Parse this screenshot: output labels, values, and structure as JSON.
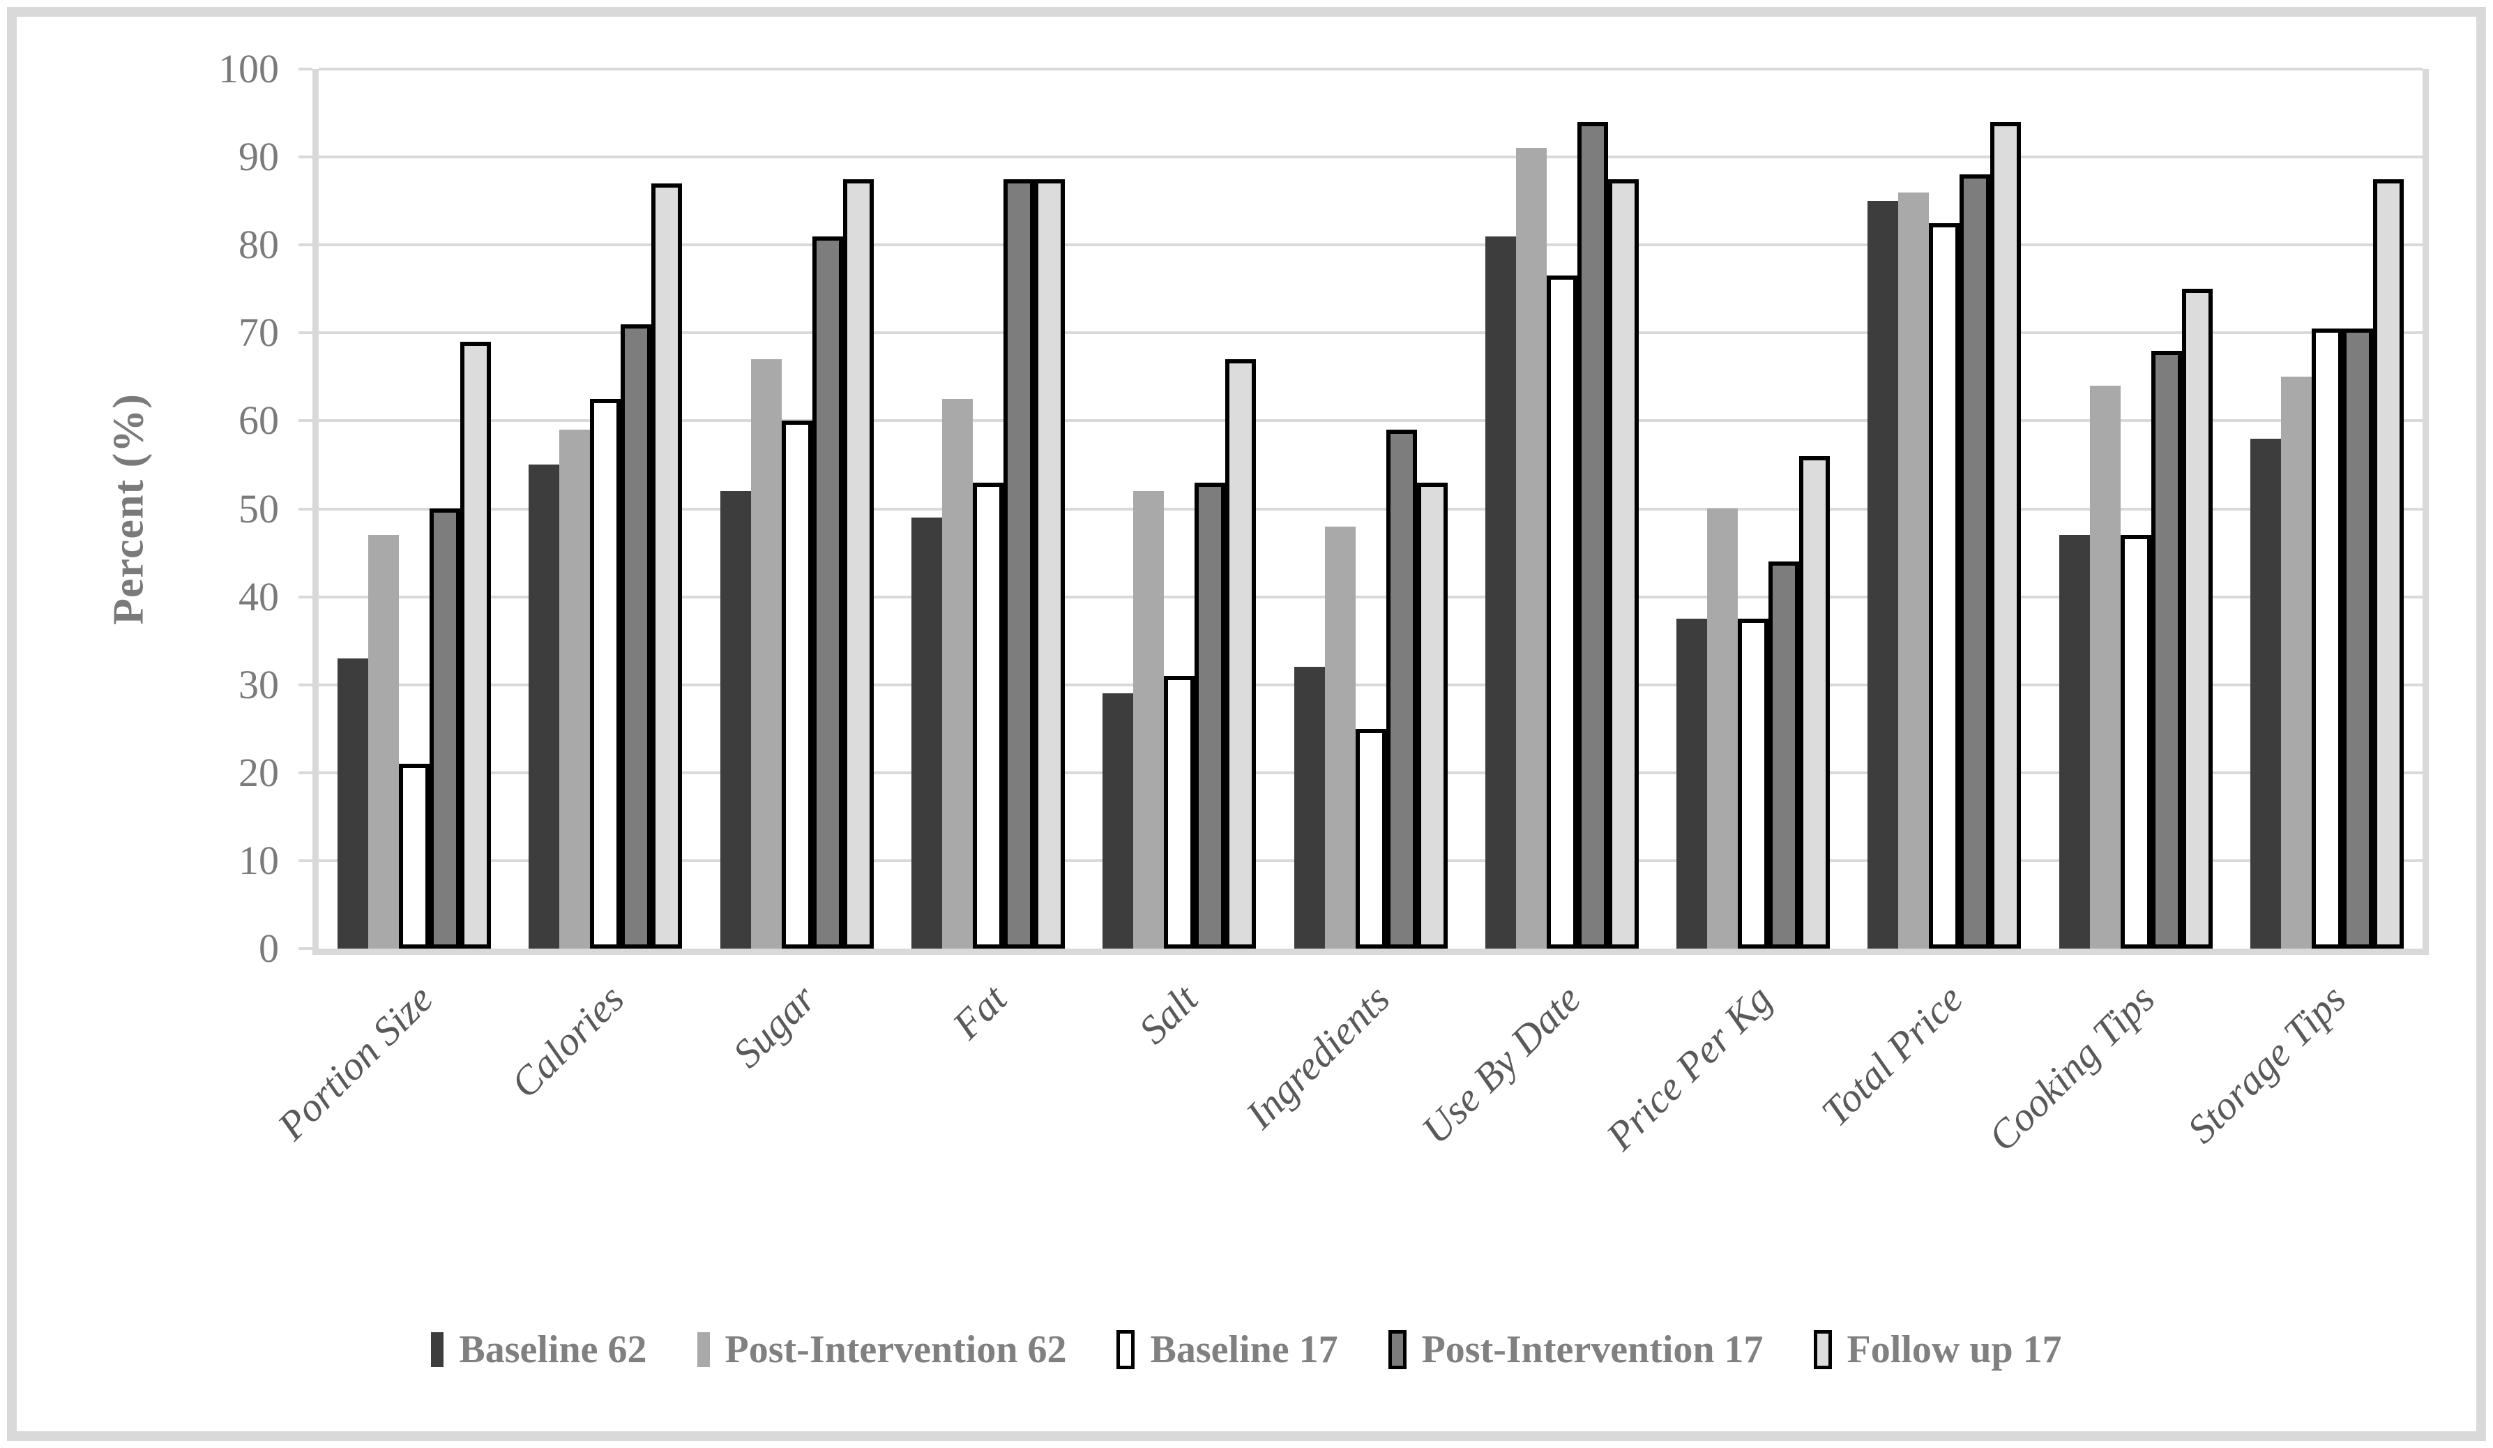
{
  "chart_data": {
    "type": "bar",
    "ylabel": "Percent (%)",
    "ylim": [
      0,
      100
    ],
    "yticks": [
      0,
      10,
      20,
      30,
      40,
      50,
      60,
      70,
      80,
      90,
      100
    ],
    "grid": true,
    "legend_position": "bottom",
    "categories": [
      "Portion Size",
      "Calories",
      "Sugar",
      "Fat",
      "Salt",
      "Ingredients",
      "Use By Date",
      "Price Per Kg",
      "Total Price",
      "Cooking Tips",
      "Storage Tips"
    ],
    "series": [
      {
        "name": "Baseline 62",
        "fill": "#3d3d3d",
        "border": false,
        "values": [
          33,
          55,
          52,
          49,
          29,
          32,
          81,
          37.5,
          85,
          47,
          58
        ]
      },
      {
        "name": "Post-Intervention 62",
        "fill": "#a9a9a9",
        "border": false,
        "values": [
          47,
          59,
          67,
          62.5,
          52,
          48,
          91,
          50,
          86,
          64,
          65
        ]
      },
      {
        "name": "Baseline 17",
        "fill": "#ffffff",
        "border": true,
        "values": [
          21,
          62.5,
          60,
          53,
          31,
          25,
          76.5,
          37.5,
          82.5,
          47,
          70.5
        ]
      },
      {
        "name": "Post-Intervention 17",
        "fill": "#7d7d7d",
        "border": true,
        "values": [
          50,
          71,
          81,
          87.5,
          53,
          59,
          94,
          44,
          88,
          68,
          70.5
        ]
      },
      {
        "name": "Follow up 17",
        "fill": "#dcdcdc",
        "border": true,
        "values": [
          69,
          87,
          87.5,
          87.5,
          67,
          53,
          87.5,
          56,
          94,
          75,
          87.5
        ]
      }
    ]
  },
  "colors": {
    "gridline": "#d9d9d9",
    "frame": "#d9d9d9",
    "tick_text": "#7a7a7a",
    "category_text": "#595959",
    "legend_text": "#808080",
    "bar_border": "#000000"
  }
}
